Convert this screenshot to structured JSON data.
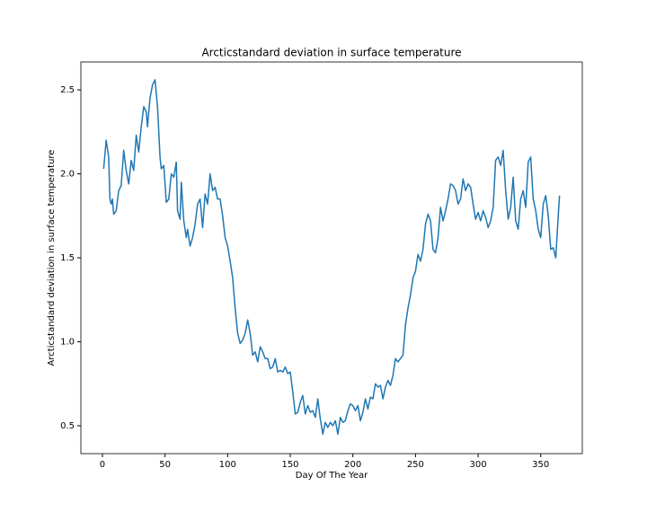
{
  "chart_data": {
    "type": "line",
    "title": "Arcticstandard deviation in surface temperature",
    "x_label": "Day Of The Year",
    "y_label": "Arcticstandard deviation in surface temperature",
    "xlim": [
      -17.2,
      383.2
    ],
    "ylim": [
      0.334,
      2.666
    ],
    "xticks": [
      0,
      50,
      100,
      150,
      200,
      250,
      300,
      350
    ],
    "yticks": [
      0.5,
      {
        "value": 1,
        "label": "1.0"
      },
      1.5,
      {
        "value": 2,
        "label": "2.0"
      },
      2.5
    ],
    "grid": false,
    "series": [
      {
        "color": "#1f77b4",
        "x": [
          1,
          3,
          5,
          6,
          7,
          8,
          9,
          11,
          13,
          15,
          17,
          19,
          21,
          23,
          25,
          27,
          29,
          31,
          33,
          35,
          36,
          38,
          40,
          42,
          44,
          46,
          47,
          49,
          51,
          53,
          55,
          57,
          59,
          60,
          62,
          63,
          65,
          67,
          68,
          70,
          72,
          74,
          76,
          78,
          80,
          82,
          84,
          86,
          88,
          90,
          92,
          94,
          96,
          98,
          100,
          102,
          104,
          106,
          108,
          110,
          112,
          114,
          116,
          118,
          120,
          122,
          124,
          126,
          128,
          130,
          132,
          134,
          136,
          138,
          140,
          142,
          144,
          146,
          148,
          150,
          152,
          154,
          156,
          158,
          160,
          162,
          164,
          166,
          168,
          170,
          172,
          174,
          176,
          178,
          180,
          182,
          184,
          186,
          188,
          190,
          192,
          194,
          196,
          198,
          200,
          202,
          204,
          206,
          208,
          210,
          212,
          214,
          216,
          218,
          220,
          222,
          224,
          226,
          228,
          230,
          232,
          234,
          236,
          238,
          240,
          242,
          244,
          246,
          248,
          250,
          252,
          254,
          256,
          258,
          260,
          262,
          264,
          266,
          268,
          270,
          272,
          274,
          276,
          278,
          280,
          282,
          284,
          286,
          288,
          290,
          292,
          294,
          296,
          298,
          300,
          302,
          304,
          306,
          308,
          310,
          312,
          314,
          316,
          318,
          320,
          322,
          324,
          326,
          328,
          330,
          332,
          334,
          336,
          338,
          340,
          342,
          344,
          346,
          348,
          350,
          352,
          354,
          356,
          358,
          360,
          362,
          364,
          365
        ],
        "values": [
          2.03,
          2.2,
          2.1,
          1.85,
          1.82,
          1.85,
          1.76,
          1.78,
          1.9,
          1.93,
          2.14,
          2.02,
          1.94,
          2.08,
          2.02,
          2.23,
          2.13,
          2.28,
          2.4,
          2.37,
          2.28,
          2.45,
          2.53,
          2.56,
          2.4,
          2.1,
          2.03,
          2.05,
          1.83,
          1.85,
          2.0,
          1.98,
          2.07,
          1.78,
          1.73,
          1.95,
          1.72,
          1.62,
          1.67,
          1.57,
          1.62,
          1.7,
          1.82,
          1.85,
          1.68,
          1.88,
          1.82,
          2.0,
          1.9,
          1.92,
          1.85,
          1.85,
          1.75,
          1.62,
          1.57,
          1.48,
          1.38,
          1.2,
          1.05,
          0.99,
          1.01,
          1.05,
          1.13,
          1.05,
          0.92,
          0.94,
          0.88,
          0.97,
          0.94,
          0.9,
          0.9,
          0.84,
          0.85,
          0.9,
          0.82,
          0.83,
          0.82,
          0.85,
          0.81,
          0.82,
          0.7,
          0.57,
          0.58,
          0.64,
          0.68,
          0.57,
          0.62,
          0.58,
          0.59,
          0.55,
          0.66,
          0.54,
          0.45,
          0.52,
          0.49,
          0.52,
          0.5,
          0.53,
          0.45,
          0.55,
          0.52,
          0.53,
          0.59,
          0.63,
          0.62,
          0.59,
          0.62,
          0.53,
          0.58,
          0.66,
          0.6,
          0.67,
          0.66,
          0.75,
          0.73,
          0.74,
          0.66,
          0.73,
          0.77,
          0.74,
          0.8,
          0.9,
          0.88,
          0.9,
          0.92,
          1.1,
          1.2,
          1.28,
          1.38,
          1.42,
          1.52,
          1.48,
          1.55,
          1.7,
          1.76,
          1.72,
          1.55,
          1.53,
          1.62,
          1.8,
          1.72,
          1.78,
          1.85,
          1.94,
          1.93,
          1.9,
          1.82,
          1.85,
          1.97,
          1.9,
          1.94,
          1.92,
          1.82,
          1.73,
          1.77,
          1.72,
          1.78,
          1.74,
          1.68,
          1.72,
          1.8,
          2.08,
          2.1,
          2.05,
          2.14,
          1.9,
          1.73,
          1.8,
          1.98,
          1.72,
          1.67,
          1.85,
          1.9,
          1.8,
          2.07,
          2.1,
          1.85,
          1.78,
          1.67,
          1.62,
          1.82,
          1.87,
          1.75,
          1.55,
          1.56,
          1.5,
          1.75,
          1.87
        ]
      }
    ]
  }
}
